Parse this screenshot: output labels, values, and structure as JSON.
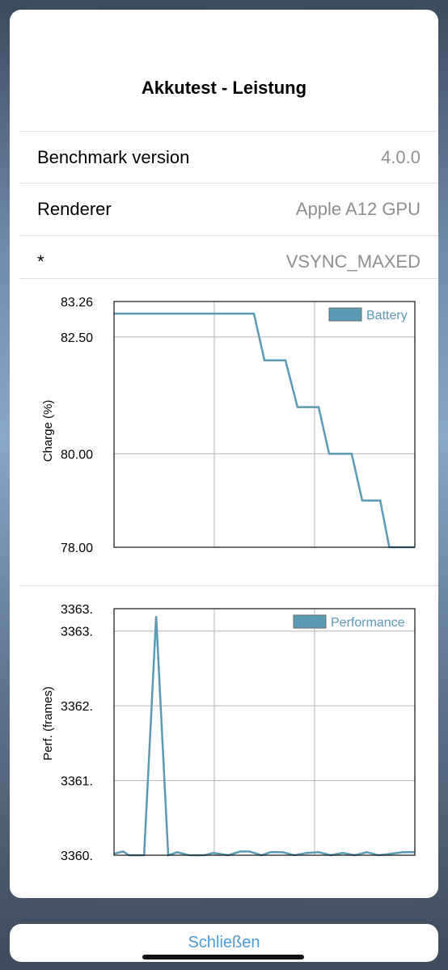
{
  "dialog": {
    "title": "Akkutest - Leistung",
    "rows": [
      {
        "label": "Benchmark version",
        "value": "4.0.0"
      },
      {
        "label": "Renderer",
        "value": "Apple A12 GPU"
      },
      {
        "label": "*",
        "value": "VSYNC_MAXED"
      }
    ],
    "close_label": "Schließen"
  },
  "colors": {
    "series": "#5a9ab5",
    "accent": "#4a9bd8"
  },
  "chart_data": [
    {
      "type": "line",
      "ylabel": "Charge (%)",
      "xlabel": "",
      "ylim": [
        78.0,
        83.26
      ],
      "yticks": [
        "83.26",
        "82.50",
        "80.00",
        "78.00"
      ],
      "ytick_values": [
        83.26,
        82.5,
        80.0,
        78.0
      ],
      "grid": true,
      "legend": "top-right",
      "series": [
        {
          "name": "Battery",
          "x": [
            0,
            0.465,
            0.5,
            0.57,
            0.61,
            0.68,
            0.715,
            0.79,
            0.825,
            0.885,
            0.915,
            0.975,
            1.0
          ],
          "y": [
            83.0,
            83.0,
            82.0,
            82.0,
            81.0,
            81.0,
            80.0,
            80.0,
            79.0,
            79.0,
            78.0,
            78.0,
            78.0
          ]
        }
      ]
    },
    {
      "type": "line",
      "ylabel": "Perf. (frames)",
      "xlabel": "",
      "ylim": [
        3360.0,
        3363.3
      ],
      "yticks": [
        "3363.",
        "3363.",
        "3362.",
        "3361.",
        "3360."
      ],
      "ytick_values": [
        3363.3,
        3363.0,
        3362.0,
        3361.0,
        3360.0
      ],
      "grid": true,
      "legend": "top-right",
      "series": [
        {
          "name": "Performance",
          "x": [
            0,
            0.03,
            0.05,
            0.1,
            0.14,
            0.18,
            0.21,
            0.25,
            0.3,
            0.33,
            0.38,
            0.42,
            0.45,
            0.49,
            0.52,
            0.56,
            0.6,
            0.64,
            0.68,
            0.72,
            0.76,
            0.8,
            0.84,
            0.88,
            0.92,
            0.96,
            1.0
          ],
          "y": [
            3360.02,
            3360.05,
            3360.0,
            3360.0,
            3363.2,
            3360.0,
            3360.04,
            3360.0,
            3360.0,
            3360.03,
            3360.0,
            3360.05,
            3360.05,
            3360.0,
            3360.04,
            3360.04,
            3360.0,
            3360.03,
            3360.04,
            3360.0,
            3360.03,
            3360.0,
            3360.04,
            3360.0,
            3360.02,
            3360.04,
            3360.04
          ]
        }
      ]
    }
  ]
}
